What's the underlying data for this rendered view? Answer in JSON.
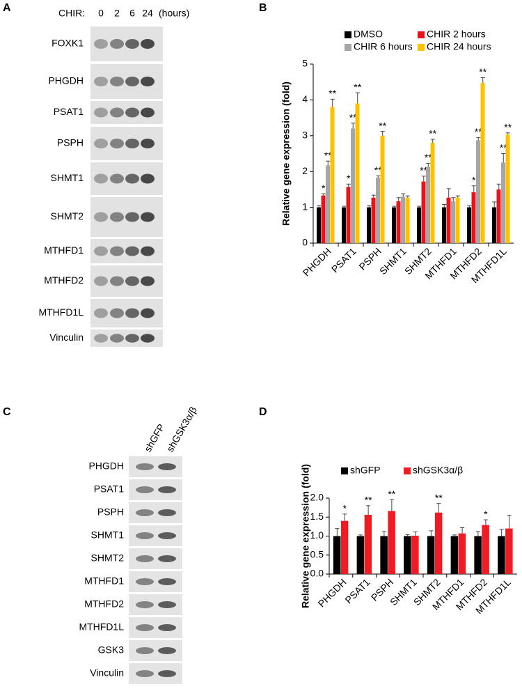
{
  "panel_labels": [
    "A",
    "B",
    "C",
    "D"
  ],
  "blot_a": {
    "treatment_label": "CHIR:",
    "lanes": [
      "0",
      "2",
      "6",
      "24"
    ],
    "unit": "(hours)",
    "rows": [
      "FOXK1",
      "PHGDH",
      "PSAT1",
      "PSPH",
      "SHMT1",
      "SHMT2",
      "MTHFD1",
      "MTHFD2",
      "MTHFD1L",
      "Vinculin"
    ]
  },
  "blot_c": {
    "lanes": [
      "shGFP",
      "shGSK3α/β"
    ],
    "rows": [
      "PHGDH",
      "PSAT1",
      "PSPH",
      "SHMT1",
      "SHMT2",
      "MTHFD1",
      "MTHFD2",
      "MTHFD1L",
      "GSK3",
      "Vinculin"
    ]
  },
  "chart_data": [
    {
      "type": "bar",
      "y_label": "Relative gene expression (fold)",
      "categories": [
        "PHGDH",
        "PSAT1",
        "PSPH",
        "SHMT1",
        "SHMT2",
        "MTHFD1",
        "MTHFD2",
        "MTHFD1L"
      ],
      "ylim": [
        0,
        5
      ],
      "yticks": [
        0,
        1,
        2,
        3,
        4,
        5
      ],
      "series": [
        {
          "name": "DMSO",
          "color": "#000000",
          "values": [
            1,
            1,
            1,
            1,
            1,
            1,
            1,
            1
          ],
          "errors": [
            0.05,
            0.03,
            0.05,
            0.03,
            0.03,
            0.08,
            0.05,
            0.15
          ],
          "labels": [
            null,
            null,
            null,
            null,
            null,
            null,
            null,
            null
          ]
        },
        {
          "name": "CHIR 2 hours",
          "color": "#e8141c",
          "values": [
            1.33,
            1.57,
            1.27,
            1.17,
            1.72,
            1.27,
            1.42,
            1.5
          ],
          "errors": [
            0.05,
            0.08,
            0.07,
            0.1,
            0.15,
            0.25,
            0.18,
            0.15
          ],
          "labels": [
            "*",
            "*",
            null,
            null,
            "**",
            null,
            "*",
            null
          ]
        },
        {
          "name": "CHIR 6 hours",
          "color": "#a6a6a6",
          "values": [
            2.17,
            3.2,
            1.83,
            1.3,
            2.13,
            1.17,
            2.87,
            2.25
          ],
          "errors": [
            0.12,
            0.15,
            0.05,
            0.08,
            0.1,
            0.1,
            0.08,
            0.25
          ],
          "labels": [
            "**",
            "**",
            "**",
            null,
            "**",
            null,
            "**",
            "**"
          ]
        },
        {
          "name": "CHIR 24 hours",
          "color": "#ffc000",
          "values": [
            3.8,
            3.9,
            3.0,
            1.27,
            2.8,
            1.27,
            4.47,
            3.03
          ],
          "errors": [
            0.22,
            0.3,
            0.12,
            0.05,
            0.1,
            0.05,
            0.15,
            0.05
          ],
          "labels": [
            "**",
            "**",
            "**",
            null,
            "**",
            null,
            "**",
            "**"
          ]
        }
      ]
    },
    {
      "type": "bar",
      "y_label": "Relative gene expression (fold)",
      "categories": [
        "PHGDH",
        "PSAT1",
        "PSPH",
        "SHMT1",
        "SHMT2",
        "MTHFD1",
        "MTHFD2",
        "MTHFD1L"
      ],
      "ylim": [
        0,
        2
      ],
      "yticks": [
        {
          "value": 0,
          "label": "0.0"
        },
        {
          "value": 0.5,
          "label": "0.5"
        },
        {
          "value": 1,
          "label": "1.0"
        },
        {
          "value": 1.5,
          "label": "1.5"
        },
        {
          "value": 2,
          "label": "2.0"
        }
      ],
      "series": [
        {
          "name": "shGFP",
          "color": "#000000",
          "values": [
            1,
            1,
            1,
            1,
            1,
            1,
            1,
            1
          ],
          "errors": [
            0.2,
            0.03,
            0.12,
            0.04,
            0.14,
            0.03,
            0.12,
            0.18
          ],
          "labels": [
            null,
            null,
            null,
            null,
            null,
            null,
            null,
            null
          ]
        },
        {
          "name": "shGSK3α/β",
          "color": "#ee1c24",
          "values": [
            1.4,
            1.56,
            1.66,
            1.01,
            1.62,
            1.07,
            1.29,
            1.2
          ],
          "errors": [
            0.18,
            0.24,
            0.3,
            0.1,
            0.24,
            0.15,
            0.14,
            0.35
          ],
          "labels": [
            "*",
            "**",
            "**",
            null,
            "**",
            null,
            "*",
            null
          ]
        }
      ]
    }
  ]
}
